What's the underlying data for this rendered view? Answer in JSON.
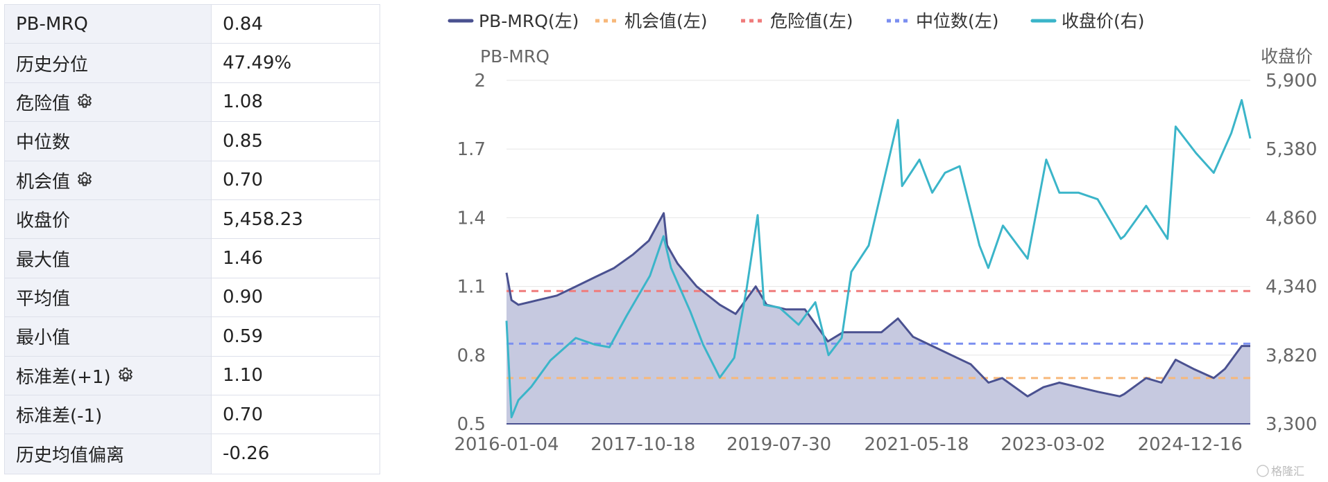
{
  "stats": [
    {
      "label": "PB-MRQ",
      "value": "0.84",
      "gear": false
    },
    {
      "label": "历史分位",
      "value": "47.49%",
      "gear": false
    },
    {
      "label": "危险值",
      "value": "1.08",
      "gear": true
    },
    {
      "label": "中位数",
      "value": "0.85",
      "gear": false
    },
    {
      "label": "机会值",
      "value": "0.70",
      "gear": true
    },
    {
      "label": "收盘价",
      "value": "5,458.23",
      "gear": false
    },
    {
      "label": "最大值",
      "value": "1.46",
      "gear": false
    },
    {
      "label": "平均值",
      "value": "0.90",
      "gear": false
    },
    {
      "label": "最小值",
      "value": "0.59",
      "gear": false
    },
    {
      "label": "标准差(+1)",
      "value": "1.10",
      "gear": true
    },
    {
      "label": "标准差(-1)",
      "value": "0.70",
      "gear": false
    },
    {
      "label": "历史均值偏离",
      "value": "-0.26",
      "gear": false
    }
  ],
  "colors": {
    "pb": "#4a5190",
    "pb_fill": "#c3c6de",
    "opportunity": "#f7b87a",
    "danger": "#ef7b7b",
    "median": "#7b8ff0",
    "close": "#3bb5c9",
    "grid": "#e6e6e6"
  },
  "watermark": "格隆汇",
  "chart_data": {
    "type": "line",
    "legend": [
      {
        "name": "PB-MRQ(左)",
        "style": "solid",
        "color": "#4a5190"
      },
      {
        "name": "机会值(左)",
        "style": "dashed",
        "color": "#f7b87a"
      },
      {
        "name": "危险值(左)",
        "style": "dashed",
        "color": "#ef7b7b"
      },
      {
        "name": "中位数(左)",
        "style": "dashed",
        "color": "#7b8ff0"
      },
      {
        "name": "收盘价(右)",
        "style": "solid",
        "color": "#3bb5c9"
      }
    ],
    "legend_position": "top",
    "ylabel_left": "PB-MRQ",
    "ylabel_right": "收盘价",
    "ylim_left": [
      0.5,
      2.0
    ],
    "ylim_right": [
      3300,
      5900
    ],
    "yticks_left": [
      "0.5",
      "0.8",
      "1.1",
      "1.4",
      "1.7",
      "2"
    ],
    "yticks_right": [
      "3,300",
      "3,820",
      "4,340",
      "4,860",
      "5,380",
      "5,900"
    ],
    "xticks": [
      "2016-01-04",
      "2017-10-18",
      "2019-07-30",
      "2021-05-18",
      "2023-03-02",
      "2024-12-16"
    ],
    "x_start": "2016-01-04",
    "x_end": "2025-09-30",
    "reference_lines": {
      "danger": 1.08,
      "median": 0.85,
      "opportunity": 0.7
    },
    "pb_series": [
      [
        "2016-01-04",
        1.16
      ],
      [
        "2016-01-28",
        1.04
      ],
      [
        "2016-03-01",
        1.02
      ],
      [
        "2016-06-01",
        1.04
      ],
      [
        "2016-09-01",
        1.06
      ],
      [
        "2016-12-01",
        1.1
      ],
      [
        "2017-03-01",
        1.14
      ],
      [
        "2017-06-01",
        1.18
      ],
      [
        "2017-09-01",
        1.24
      ],
      [
        "2017-11-15",
        1.3
      ],
      [
        "2018-01-25",
        1.42
      ],
      [
        "2018-02-10",
        1.28
      ],
      [
        "2018-04-01",
        1.2
      ],
      [
        "2018-07-01",
        1.1
      ],
      [
        "2018-10-20",
        1.02
      ],
      [
        "2019-01-04",
        0.98
      ],
      [
        "2019-04-10",
        1.1
      ],
      [
        "2019-06-01",
        1.02
      ],
      [
        "2019-09-01",
        1.0
      ],
      [
        "2019-12-01",
        1.0
      ],
      [
        "2020-03-20",
        0.86
      ],
      [
        "2020-06-01",
        0.9
      ],
      [
        "2020-09-01",
        0.9
      ],
      [
        "2020-12-01",
        0.9
      ],
      [
        "2021-02-18",
        0.96
      ],
      [
        "2021-05-01",
        0.88
      ],
      [
        "2021-08-01",
        0.84
      ],
      [
        "2021-11-01",
        0.8
      ],
      [
        "2022-02-01",
        0.76
      ],
      [
        "2022-04-27",
        0.68
      ],
      [
        "2022-07-01",
        0.7
      ],
      [
        "2022-10-31",
        0.62
      ],
      [
        "2023-01-15",
        0.66
      ],
      [
        "2023-04-01",
        0.68
      ],
      [
        "2023-07-01",
        0.66
      ],
      [
        "2023-10-01",
        0.64
      ],
      [
        "2024-01-15",
        0.62
      ],
      [
        "2024-02-05",
        0.63
      ],
      [
        "2024-05-20",
        0.7
      ],
      [
        "2024-08-01",
        0.68
      ],
      [
        "2024-10-08",
        0.78
      ],
      [
        "2025-01-01",
        0.74
      ],
      [
        "2025-04-08",
        0.7
      ],
      [
        "2025-06-01",
        0.74
      ],
      [
        "2025-08-20",
        0.84
      ],
      [
        "2025-09-30",
        0.84
      ]
    ],
    "close_series": [
      [
        "2016-01-04",
        4080
      ],
      [
        "2016-01-28",
        3350
      ],
      [
        "2016-03-01",
        3480
      ],
      [
        "2016-05-01",
        3580
      ],
      [
        "2016-08-01",
        3780
      ],
      [
        "2016-11-30",
        3950
      ],
      [
        "2017-03-01",
        3900
      ],
      [
        "2017-05-10",
        3880
      ],
      [
        "2017-08-01",
        4120
      ],
      [
        "2017-11-20",
        4420
      ],
      [
        "2018-01-24",
        4720
      ],
      [
        "2018-03-01",
        4480
      ],
      [
        "2018-06-01",
        4150
      ],
      [
        "2018-08-01",
        3900
      ],
      [
        "2018-10-20",
        3650
      ],
      [
        "2018-12-28",
        3800
      ],
      [
        "2019-02-25",
        4320
      ],
      [
        "2019-04-19",
        4880
      ],
      [
        "2019-05-20",
        4200
      ],
      [
        "2019-08-01",
        4180
      ],
      [
        "2019-11-01",
        4050
      ],
      [
        "2020-01-20",
        4220
      ],
      [
        "2020-03-23",
        3820
      ],
      [
        "2020-05-25",
        3950
      ],
      [
        "2020-07-10",
        4450
      ],
      [
        "2020-10-01",
        4650
      ],
      [
        "2021-02-18",
        5600
      ],
      [
        "2021-03-10",
        5100
      ],
      [
        "2021-06-01",
        5300
      ],
      [
        "2021-08-01",
        5050
      ],
      [
        "2021-10-01",
        5200
      ],
      [
        "2021-12-10",
        5250
      ],
      [
        "2022-03-15",
        4650
      ],
      [
        "2022-04-26",
        4480
      ],
      [
        "2022-07-05",
        4800
      ],
      [
        "2022-10-31",
        4550
      ],
      [
        "2023-01-28",
        5300
      ],
      [
        "2023-04-01",
        5050
      ],
      [
        "2023-07-01",
        5050
      ],
      [
        "2023-10-01",
        5000
      ],
      [
        "2024-01-20",
        4700
      ],
      [
        "2024-02-05",
        4720
      ],
      [
        "2024-05-20",
        4950
      ],
      [
        "2024-08-30",
        4700
      ],
      [
        "2024-10-08",
        5550
      ],
      [
        "2025-01-13",
        5350
      ],
      [
        "2025-04-08",
        5200
      ],
      [
        "2025-07-01",
        5500
      ],
      [
        "2025-08-20",
        5750
      ],
      [
        "2025-09-30",
        5460
      ]
    ]
  }
}
